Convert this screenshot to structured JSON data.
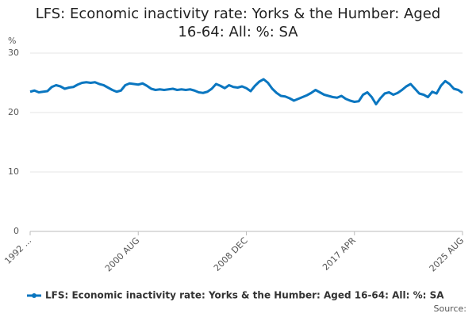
{
  "chart_data": {
    "type": "line",
    "title": "LFS: Economic inactivity rate: Yorks & the Humber: Aged 16-64: All: %: SA",
    "y_label": "%",
    "source": "Source:",
    "categories": [
      "1992 ...",
      null,
      null,
      null,
      null,
      null,
      null,
      null,
      null,
      null,
      null,
      null,
      null,
      null,
      null,
      null,
      null,
      null,
      null,
      null,
      null,
      null,
      null,
      null,
      null,
      "2000 AUG",
      null,
      null,
      null,
      null,
      null,
      null,
      null,
      null,
      null,
      null,
      null,
      null,
      null,
      null,
      null,
      null,
      null,
      null,
      null,
      null,
      null,
      null,
      null,
      null,
      "2008 DEC",
      null,
      null,
      null,
      null,
      null,
      null,
      null,
      null,
      null,
      null,
      null,
      null,
      null,
      null,
      null,
      null,
      null,
      null,
      null,
      null,
      null,
      null,
      null,
      null,
      "2017 APR",
      null,
      null,
      null,
      null,
      null,
      null,
      null,
      null,
      null,
      null,
      null,
      null,
      null,
      null,
      null,
      null,
      null,
      null,
      null,
      null,
      null,
      null,
      null,
      null,
      "2025 AUG"
    ],
    "series": [
      {
        "name": "LFS: Economic inactivity rate: Yorks & the Humber: Aged 16-64: All: %: SA",
        "color": "#0a76c0",
        "values": [
          23.5,
          23.7,
          23.4,
          23.5,
          23.6,
          24.3,
          24.6,
          24.4,
          24.0,
          24.2,
          24.3,
          24.7,
          25.0,
          25.1,
          25.0,
          25.1,
          24.8,
          24.6,
          24.2,
          23.8,
          23.5,
          23.7,
          24.6,
          24.9,
          24.8,
          24.7,
          24.9,
          24.5,
          24.0,
          23.8,
          23.9,
          23.8,
          23.9,
          24.0,
          23.8,
          23.9,
          23.8,
          23.9,
          23.7,
          23.4,
          23.3,
          23.5,
          24.0,
          24.8,
          24.5,
          24.1,
          24.6,
          24.3,
          24.2,
          24.4,
          24.1,
          23.6,
          24.5,
          25.2,
          25.6,
          25.0,
          24.0,
          23.3,
          22.8,
          22.7,
          22.4,
          22.0,
          22.3,
          22.6,
          22.9,
          23.3,
          23.8,
          23.4,
          23.0,
          22.8,
          22.6,
          22.5,
          22.8,
          22.3,
          22.0,
          21.8,
          21.9,
          23.0,
          23.4,
          22.6,
          21.4,
          22.4,
          23.2,
          23.4,
          23.0,
          23.3,
          23.8,
          24.4,
          24.8,
          24.0,
          23.2,
          23.0,
          22.6,
          23.5,
          23.2,
          24.5,
          25.3,
          24.8,
          24.0,
          23.8,
          23.3
        ]
      }
    ],
    "ylim": [
      0,
      30
    ],
    "yticks": [
      0,
      10,
      20,
      30
    ],
    "grid": true
  }
}
